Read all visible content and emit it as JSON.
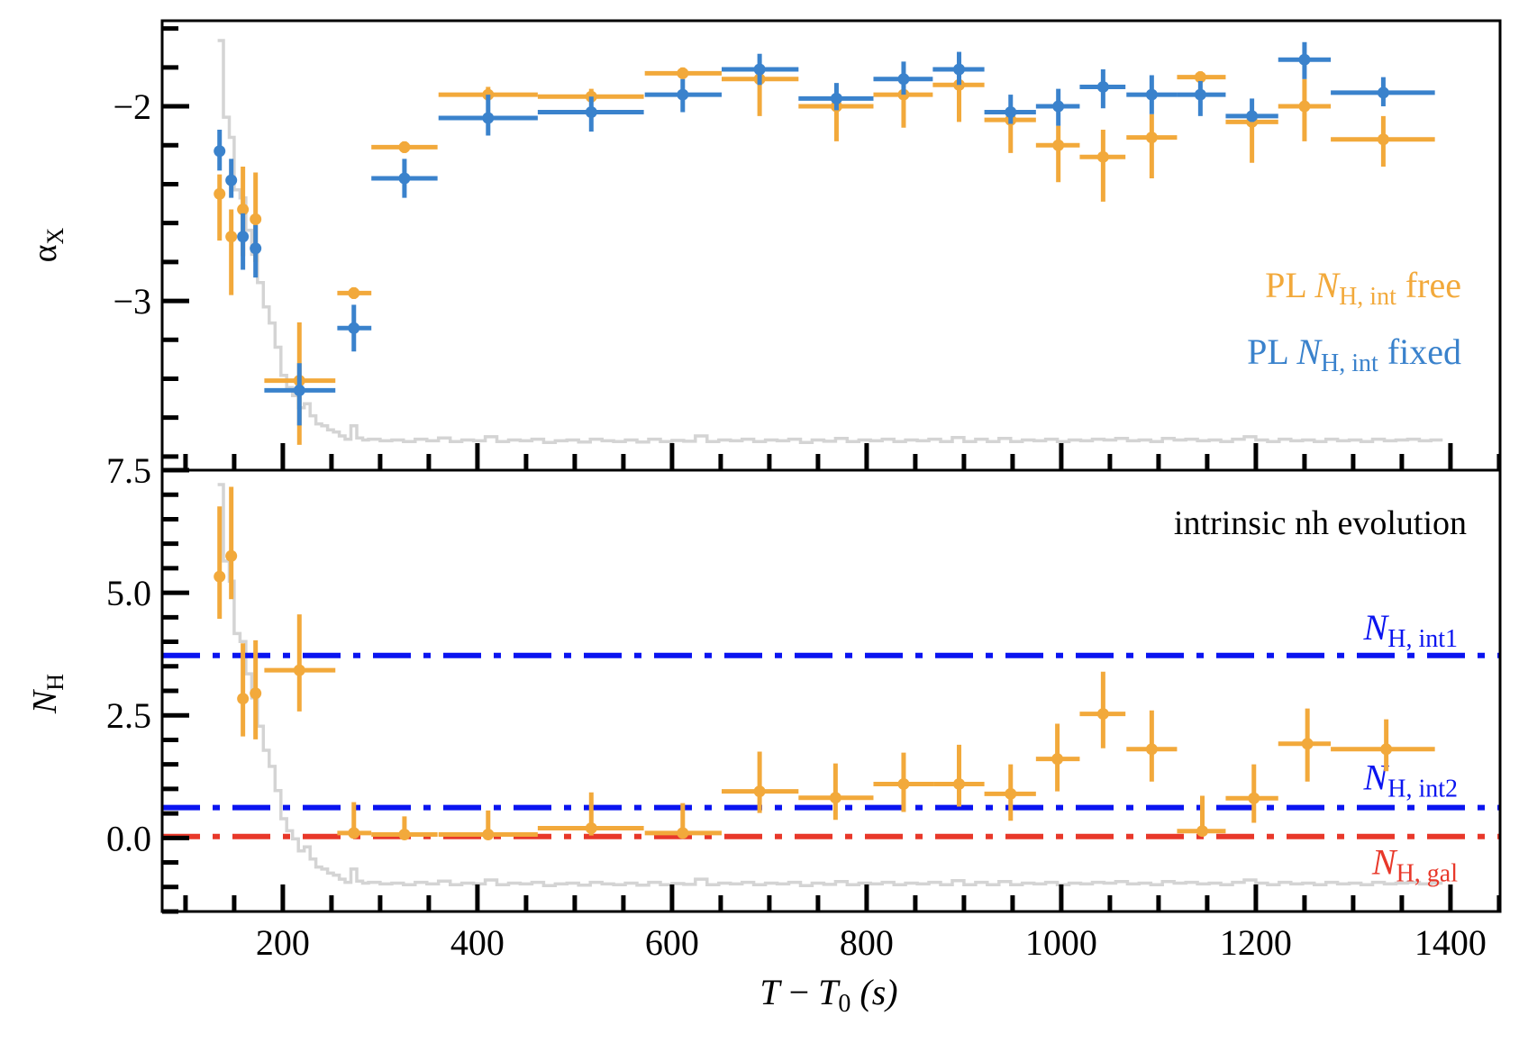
{
  "chart_data": [
    {
      "panel": "top",
      "type": "scatter",
      "ylabel": "αX",
      "ylabel_main": "α",
      "ylabel_sub": "X",
      "xlabel": "",
      "xlim": [
        76,
        1451
      ],
      "ylim": [
        -3.87,
        -1.56
      ],
      "yticks": [
        -2,
        -3
      ],
      "ytick_labels": [
        "−2",
        "−3"
      ],
      "y_minor_step": 0.2,
      "grid": false,
      "legend_position": "right-middle",
      "series": [
        {
          "name": "PL N_H,int free",
          "label_parts": {
            "pre": "PL ",
            "italic": "N",
            "sub": "H, int",
            "post": " free"
          },
          "color": "#f2a93b",
          "points": [
            {
              "x": 135,
              "xlo": 135,
              "xhi": 135,
              "y": -2.45,
              "ylo": -2.69,
              "yhi": -2.35
            },
            {
              "x": 147,
              "xlo": 147,
              "xhi": 147,
              "y": -2.67,
              "ylo": -2.97,
              "yhi": -2.53
            },
            {
              "x": 159,
              "xlo": 159,
              "xhi": 159,
              "y": -2.53,
              "ylo": -2.77,
              "yhi": -2.31
            },
            {
              "x": 172,
              "xlo": 172,
              "xhi": 172,
              "y": -2.58,
              "ylo": -2.8,
              "yhi": -2.34
            },
            {
              "x": 217,
              "xlo": 181,
              "xhi": 254,
              "y": -3.41,
              "ylo": -3.74,
              "yhi": -3.11
            },
            {
              "x": 273,
              "xlo": 256,
              "xhi": 291,
              "y": -2.96,
              "ylo": -2.99,
              "yhi": -2.93
            },
            {
              "x": 325,
              "xlo": 291,
              "xhi": 359,
              "y": -2.21,
              "ylo": -2.24,
              "yhi": -2.18
            },
            {
              "x": 411,
              "xlo": 360,
              "xhi": 462,
              "y": -1.94,
              "ylo": -1.97,
              "yhi": -1.9
            },
            {
              "x": 517,
              "xlo": 462,
              "xhi": 571,
              "y": -1.95,
              "ylo": -1.98,
              "yhi": -1.91
            },
            {
              "x": 611,
              "xlo": 572,
              "xhi": 651,
              "y": -1.83,
              "ylo": -1.86,
              "yhi": -1.8
            },
            {
              "x": 690,
              "xlo": 651,
              "xhi": 730,
              "y": -1.86,
              "ylo": -2.05,
              "yhi": -1.83
            },
            {
              "x": 769,
              "xlo": 730,
              "xhi": 807,
              "y": -2.0,
              "ylo": -2.18,
              "yhi": -1.97
            },
            {
              "x": 838,
              "xlo": 807,
              "xhi": 868,
              "y": -1.94,
              "ylo": -2.11,
              "yhi": -1.91
            },
            {
              "x": 895,
              "xlo": 868,
              "xhi": 921,
              "y": -1.89,
              "ylo": -2.08,
              "yhi": -1.86
            },
            {
              "x": 948,
              "xlo": 921,
              "xhi": 974,
              "y": -2.07,
              "ylo": -2.24,
              "yhi": -2.04
            },
            {
              "x": 997,
              "xlo": 974,
              "xhi": 1019,
              "y": -2.2,
              "ylo": -2.39,
              "yhi": -2.1
            },
            {
              "x": 1043,
              "xlo": 1019,
              "xhi": 1066,
              "y": -2.26,
              "ylo": -2.49,
              "yhi": -2.12
            },
            {
              "x": 1093,
              "xlo": 1067,
              "xhi": 1119,
              "y": -2.16,
              "ylo": -2.37,
              "yhi": -2.04
            },
            {
              "x": 1143,
              "xlo": 1119,
              "xhi": 1169,
              "y": -1.85,
              "ylo": -1.88,
              "yhi": -1.82
            },
            {
              "x": 1196,
              "xlo": 1169,
              "xhi": 1223,
              "y": -2.08,
              "ylo": -2.29,
              "yhi": -2.05
            },
            {
              "x": 1250,
              "xlo": 1223,
              "xhi": 1277,
              "y": -2.0,
              "ylo": -2.18,
              "yhi": -1.86
            },
            {
              "x": 1331,
              "xlo": 1277,
              "xhi": 1384,
              "y": -2.17,
              "ylo": -2.31,
              "yhi": -2.05
            }
          ]
        },
        {
          "name": "PL N_H,int fixed",
          "label_parts": {
            "pre": "PL ",
            "italic": "N",
            "sub": "H, int",
            "post": " fixed"
          },
          "color": "#3a82cc",
          "points": [
            {
              "x": 135,
              "xlo": 135,
              "xhi": 135,
              "y": -2.23,
              "ylo": -2.33,
              "yhi": -2.12
            },
            {
              "x": 147,
              "xlo": 147,
              "xhi": 147,
              "y": -2.38,
              "ylo": -2.47,
              "yhi": -2.27
            },
            {
              "x": 159,
              "xlo": 159,
              "xhi": 159,
              "y": -2.67,
              "ylo": -2.84,
              "yhi": -2.55
            },
            {
              "x": 172,
              "xlo": 172,
              "xhi": 172,
              "y": -2.73,
              "ylo": -2.88,
              "yhi": -2.61
            },
            {
              "x": 217,
              "xlo": 181,
              "xhi": 254,
              "y": -3.46,
              "ylo": -3.64,
              "yhi": -3.32
            },
            {
              "x": 273,
              "xlo": 256,
              "xhi": 291,
              "y": -3.14,
              "ylo": -3.26,
              "yhi": -3.02
            },
            {
              "x": 325,
              "xlo": 291,
              "xhi": 359,
              "y": -2.37,
              "ylo": -2.47,
              "yhi": -2.27
            },
            {
              "x": 411,
              "xlo": 360,
              "xhi": 462,
              "y": -2.06,
              "ylo": -2.15,
              "yhi": -1.94
            },
            {
              "x": 517,
              "xlo": 462,
              "xhi": 571,
              "y": -2.03,
              "ylo": -2.13,
              "yhi": -1.95
            },
            {
              "x": 611,
              "xlo": 572,
              "xhi": 651,
              "y": -1.94,
              "ylo": -2.03,
              "yhi": -1.86
            },
            {
              "x": 690,
              "xlo": 651,
              "xhi": 730,
              "y": -1.81,
              "ylo": -1.89,
              "yhi": -1.73
            },
            {
              "x": 769,
              "xlo": 730,
              "xhi": 807,
              "y": -1.96,
              "ylo": -2.02,
              "yhi": -1.88
            },
            {
              "x": 838,
              "xlo": 807,
              "xhi": 868,
              "y": -1.86,
              "ylo": -1.94,
              "yhi": -1.77
            },
            {
              "x": 895,
              "xlo": 868,
              "xhi": 921,
              "y": -1.81,
              "ylo": -1.89,
              "yhi": -1.72
            },
            {
              "x": 948,
              "xlo": 921,
              "xhi": 974,
              "y": -2.03,
              "ylo": -2.09,
              "yhi": -1.94
            },
            {
              "x": 997,
              "xlo": 974,
              "xhi": 1019,
              "y": -2.0,
              "ylo": -2.1,
              "yhi": -1.91
            },
            {
              "x": 1043,
              "xlo": 1019,
              "xhi": 1066,
              "y": -1.9,
              "ylo": -2.01,
              "yhi": -1.81
            },
            {
              "x": 1093,
              "xlo": 1067,
              "xhi": 1119,
              "y": -1.94,
              "ylo": -2.04,
              "yhi": -1.84
            },
            {
              "x": 1143,
              "xlo": 1119,
              "xhi": 1169,
              "y": -1.94,
              "ylo": -2.05,
              "yhi": -1.87
            },
            {
              "x": 1196,
              "xlo": 1169,
              "xhi": 1223,
              "y": -2.05,
              "ylo": -2.08,
              "yhi": -1.96
            },
            {
              "x": 1250,
              "xlo": 1223,
              "xhi": 1277,
              "y": -1.76,
              "ylo": -1.86,
              "yhi": -1.67
            },
            {
              "x": 1331,
              "xlo": 1277,
              "xhi": 1384,
              "y": -1.93,
              "ylo": -2.0,
              "yhi": -1.85
            }
          ]
        }
      ]
    },
    {
      "panel": "bottom",
      "type": "scatter",
      "ylabel_main": "N",
      "ylabel_sub": "H",
      "xlabel": "T − T0 (s)",
      "xlabel_parts": {
        "a": "T",
        "minus": " − ",
        "b": "T",
        "b_sub": "0",
        "unit": " (s)"
      },
      "xlim": [
        76,
        1451
      ],
      "ylim": [
        -1.5,
        7.5
      ],
      "xticks": [
        200,
        400,
        600,
        800,
        1000,
        1200,
        1400
      ],
      "xtick_labels": [
        "200",
        "400",
        "600",
        "800",
        "1000",
        "1200",
        "1400"
      ],
      "x_minor_step": 50,
      "yticks": [
        0.0,
        2.5,
        5.0,
        7.5
      ],
      "ytick_labels": [
        "0.0",
        "2.5",
        "5.0",
        "7.5"
      ],
      "y_minor_step": 0.5,
      "grid": false,
      "annotation": "intrinsic nh evolution",
      "series": [
        {
          "name": "PL N_H,int free",
          "color": "#f2a93b",
          "points": [
            {
              "x": 135,
              "xlo": 135,
              "xhi": 135,
              "y": 5.33,
              "ylo": 4.47,
              "yhi": 6.76
            },
            {
              "x": 147,
              "xlo": 147,
              "xhi": 147,
              "y": 5.75,
              "ylo": 4.87,
              "yhi": 7.16
            },
            {
              "x": 159,
              "xlo": 159,
              "xhi": 159,
              "y": 2.84,
              "ylo": 2.07,
              "yhi": 3.97
            },
            {
              "x": 172,
              "xlo": 172,
              "xhi": 172,
              "y": 2.95,
              "ylo": 2.01,
              "yhi": 4.03
            },
            {
              "x": 217,
              "xlo": 181,
              "xhi": 254,
              "y": 3.42,
              "ylo": 2.58,
              "yhi": 4.56
            },
            {
              "x": 273,
              "xlo": 256,
              "xhi": 291,
              "y": 0.1,
              "ylo": 0.05,
              "yhi": 0.73
            },
            {
              "x": 325,
              "xlo": 291,
              "xhi": 359,
              "y": 0.07,
              "ylo": 0.03,
              "yhi": 0.44
            },
            {
              "x": 411,
              "xlo": 360,
              "xhi": 462,
              "y": 0.07,
              "ylo": 0.03,
              "yhi": 0.56
            },
            {
              "x": 517,
              "xlo": 462,
              "xhi": 571,
              "y": 0.2,
              "ylo": 0.05,
              "yhi": 0.93
            },
            {
              "x": 611,
              "xlo": 572,
              "xhi": 651,
              "y": 0.1,
              "ylo": 0.04,
              "yhi": 0.71
            },
            {
              "x": 690,
              "xlo": 651,
              "xhi": 730,
              "y": 0.95,
              "ylo": 0.51,
              "yhi": 1.76
            },
            {
              "x": 768,
              "xlo": 730,
              "xhi": 807,
              "y": 0.82,
              "ylo": 0.37,
              "yhi": 1.52
            },
            {
              "x": 838,
              "xlo": 807,
              "xhi": 869,
              "y": 1.1,
              "ylo": 0.53,
              "yhi": 1.74
            },
            {
              "x": 895,
              "xlo": 869,
              "xhi": 921,
              "y": 1.1,
              "ylo": 0.64,
              "yhi": 1.9
            },
            {
              "x": 948,
              "xlo": 921,
              "xhi": 974,
              "y": 0.9,
              "ylo": 0.35,
              "yhi": 1.5
            },
            {
              "x": 996,
              "xlo": 974,
              "xhi": 1019,
              "y": 1.61,
              "ylo": 0.95,
              "yhi": 2.33
            },
            {
              "x": 1043,
              "xlo": 1019,
              "xhi": 1066,
              "y": 2.53,
              "ylo": 1.83,
              "yhi": 3.39
            },
            {
              "x": 1093,
              "xlo": 1067,
              "xhi": 1119,
              "y": 1.81,
              "ylo": 1.15,
              "yhi": 2.6
            },
            {
              "x": 1145,
              "xlo": 1119,
              "xhi": 1169,
              "y": 0.14,
              "ylo": 0.05,
              "yhi": 0.86
            },
            {
              "x": 1198,
              "xlo": 1169,
              "xhi": 1223,
              "y": 0.81,
              "ylo": 0.31,
              "yhi": 1.5
            },
            {
              "x": 1253,
              "xlo": 1223,
              "xhi": 1277,
              "y": 1.92,
              "ylo": 1.15,
              "yhi": 2.64
            },
            {
              "x": 1334,
              "xlo": 1277,
              "xhi": 1384,
              "y": 1.81,
              "ylo": 1.36,
              "yhi": 2.42
            }
          ]
        }
      ],
      "hlines": [
        {
          "name": "N_H,int1",
          "label_main": "N",
          "label_sub": "H, int1",
          "y": 3.72,
          "color": "#0a14f0",
          "style": "dashdot"
        },
        {
          "name": "N_H,int2",
          "label_main": "N",
          "label_sub": "H, int2",
          "y": 0.62,
          "color": "#0a14f0",
          "style": "dashdot"
        },
        {
          "name": "N_H,gal",
          "label_main": "N",
          "label_sub": "H, gal",
          "y": 0.03,
          "color": "#e8382a",
          "style": "dashdot"
        }
      ]
    }
  ],
  "light_curve": {
    "description": "background count-rate light curve (grey step histogram), relative units 0-1",
    "color": "#d4d4d4",
    "x": [
      133,
      139,
      145,
      150,
      156,
      162,
      168,
      174,
      180,
      186,
      192,
      198,
      204,
      210,
      216,
      222,
      228,
      234,
      240,
      246,
      252,
      258,
      264,
      270,
      276,
      282,
      288,
      300,
      312,
      324,
      336,
      348,
      360,
      372,
      384,
      396,
      408,
      420,
      432,
      444,
      456,
      468,
      480,
      492,
      504,
      516,
      528,
      540,
      552,
      564,
      576,
      588,
      600,
      612,
      624,
      636,
      648,
      660,
      672,
      684,
      696,
      708,
      720,
      732,
      744,
      756,
      768,
      780,
      792,
      804,
      816,
      828,
      840,
      852,
      864,
      876,
      888,
      900,
      912,
      924,
      936,
      948,
      960,
      972,
      984,
      996,
      1008,
      1020,
      1032,
      1044,
      1056,
      1068,
      1080,
      1092,
      1104,
      1116,
      1128,
      1140,
      1152,
      1164,
      1176,
      1188,
      1200,
      1212,
      1224,
      1236,
      1248,
      1260,
      1272,
      1284,
      1296,
      1308,
      1320,
      1332,
      1344,
      1356,
      1368,
      1380
    ],
    "y": [
      1.0,
      0.81,
      0.76,
      0.63,
      0.61,
      0.53,
      0.47,
      0.4,
      0.34,
      0.3,
      0.24,
      0.17,
      0.14,
      0.12,
      0.09,
      0.1,
      0.07,
      0.05,
      0.045,
      0.035,
      0.03,
      0.02,
      0.012,
      0.045,
      0.015,
      0.01,
      0.012,
      0.008,
      0.01,
      0.006,
      0.012,
      0.008,
      0.015,
      0.006,
      0.01,
      0.008,
      0.018,
      0.006,
      0.01,
      0.008,
      0.012,
      0.004,
      0.008,
      0.01,
      0.005,
      0.012,
      0.008,
      0.006,
      0.01,
      0.005,
      0.012,
      0.006,
      0.009,
      0.007,
      0.02,
      0.006,
      0.01,
      0.008,
      0.012,
      0.006,
      0.01,
      0.008,
      0.012,
      0.004,
      0.01,
      0.007,
      0.014,
      0.006,
      0.01,
      0.008,
      0.012,
      0.006,
      0.01,
      0.008,
      0.012,
      0.006,
      0.016,
      0.006,
      0.012,
      0.006,
      0.014,
      0.006,
      0.01,
      0.008,
      0.012,
      0.006,
      0.01,
      0.008,
      0.012,
      0.01,
      0.014,
      0.008,
      0.01,
      0.006,
      0.014,
      0.01,
      0.012,
      0.008,
      0.01,
      0.006,
      0.012,
      0.018,
      0.01,
      0.006,
      0.012,
      0.008,
      0.01,
      0.006,
      0.012,
      0.008,
      0.01,
      0.006,
      0.012,
      0.008,
      0.01,
      0.012,
      0.008,
      0.01
    ]
  }
}
